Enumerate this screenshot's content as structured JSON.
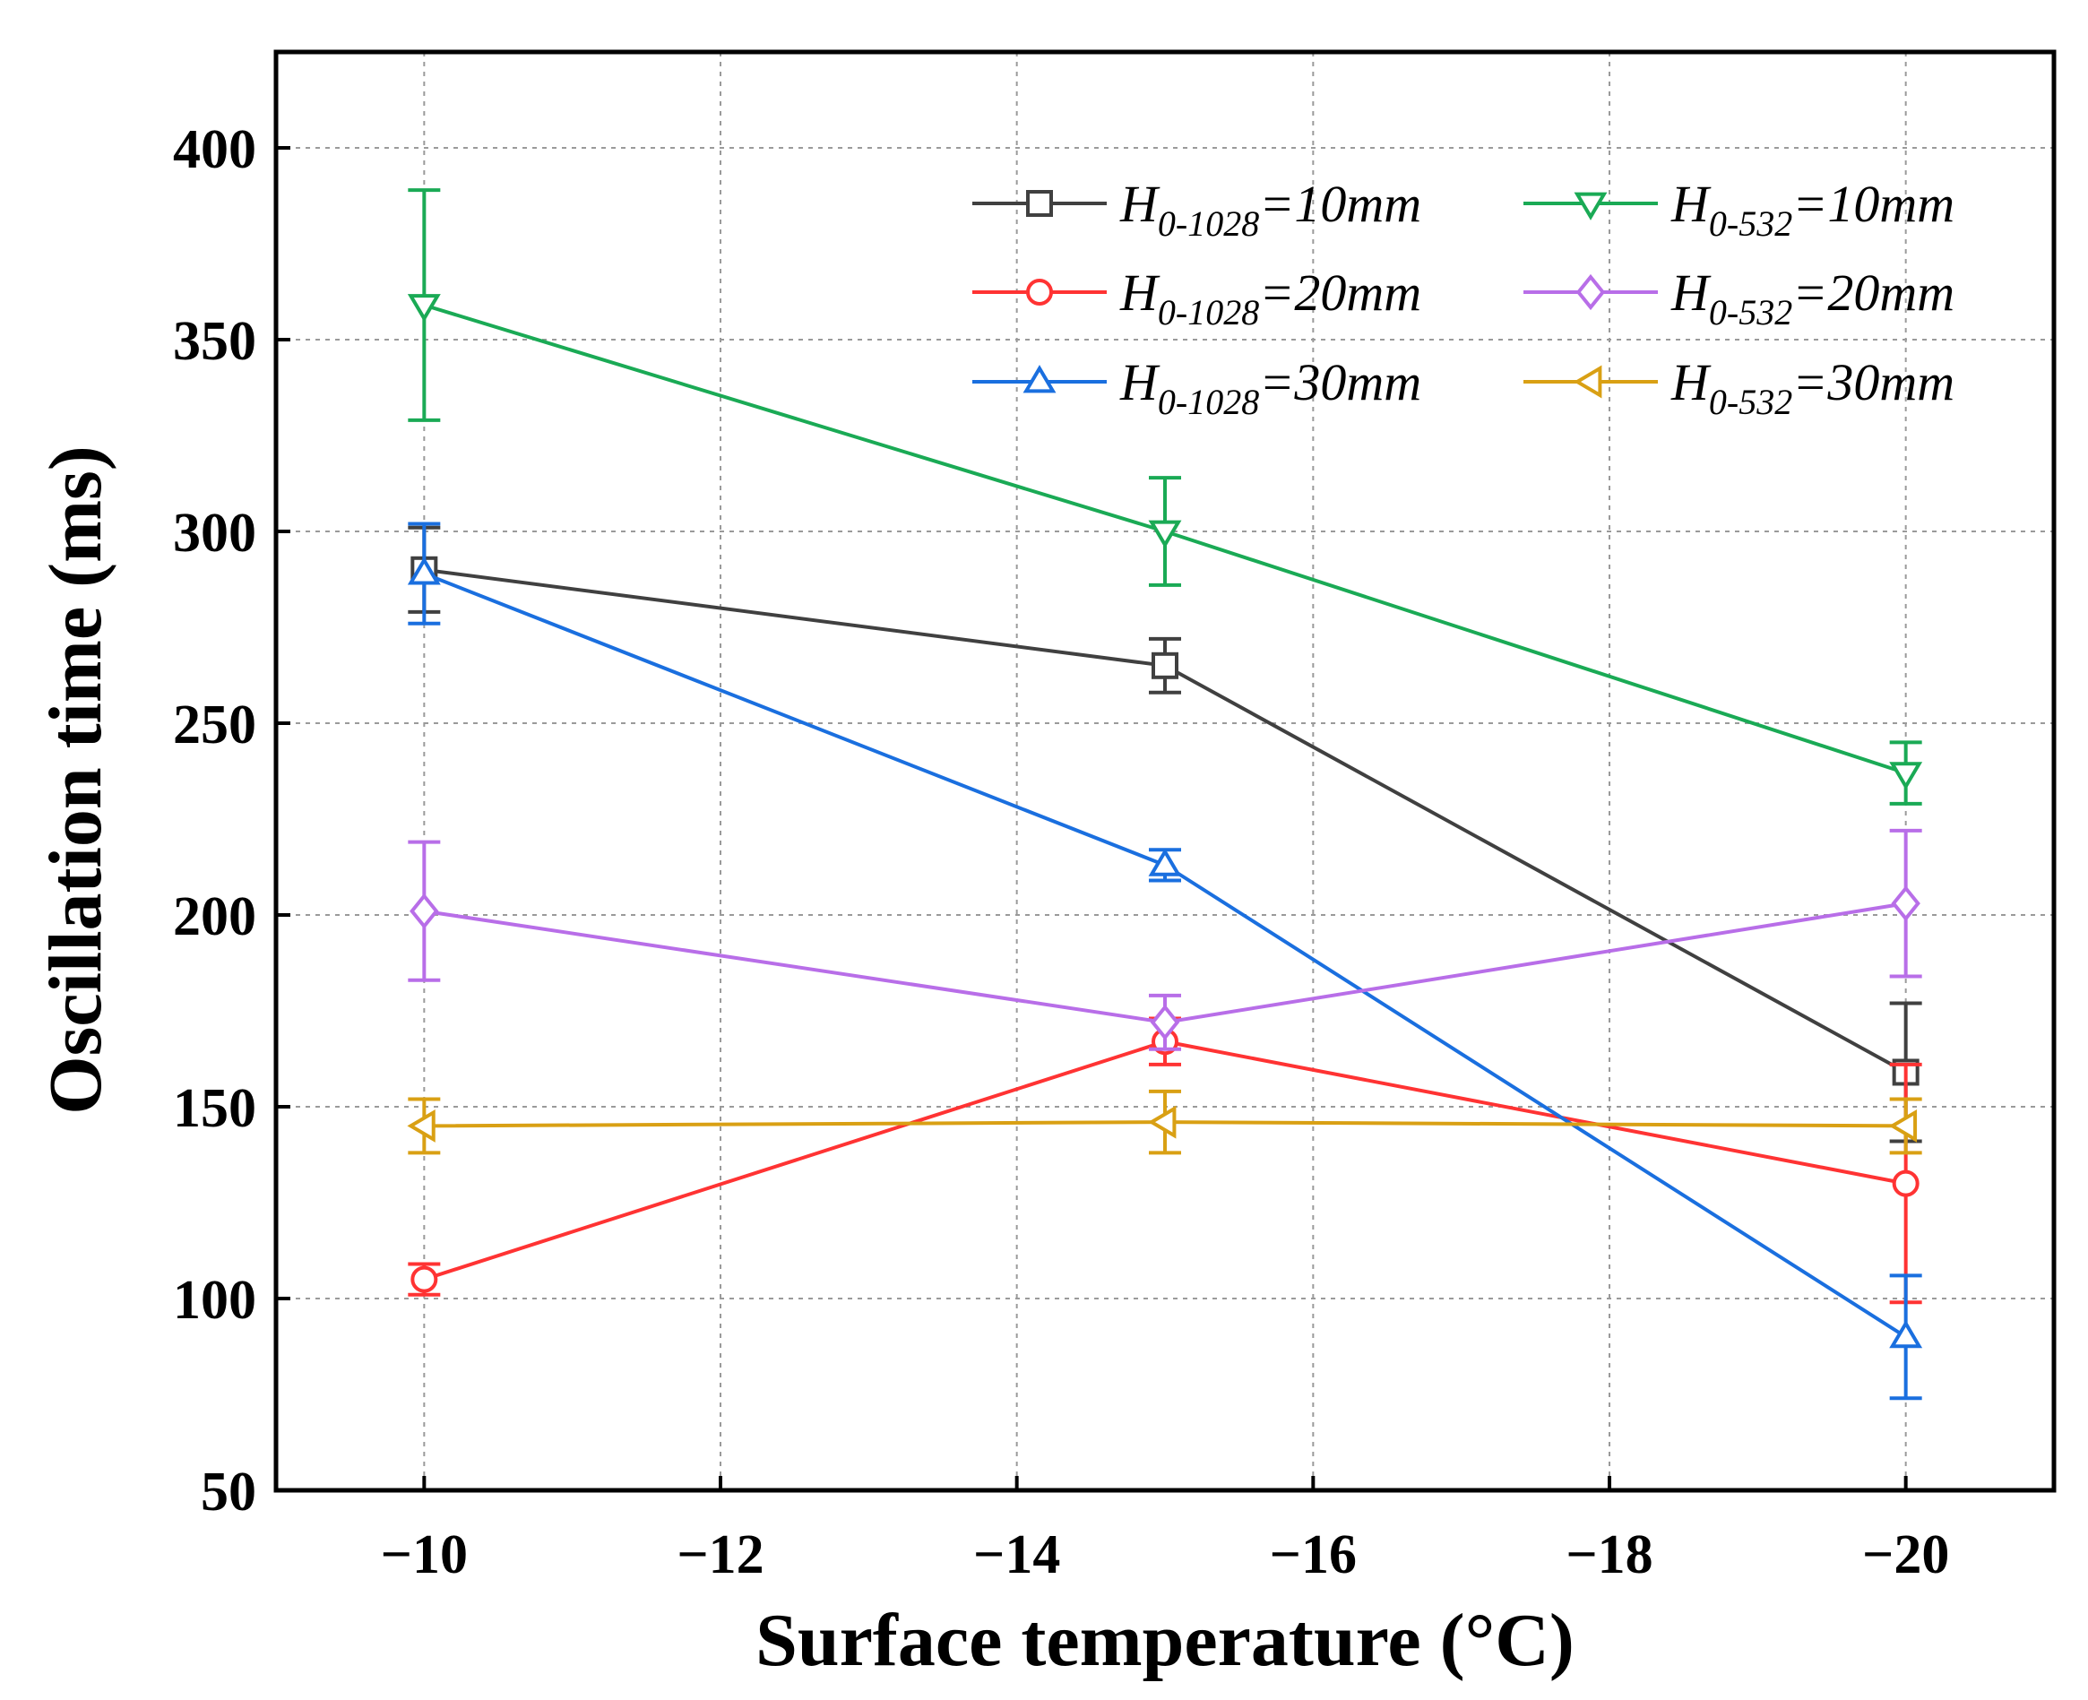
{
  "chart_data": {
    "type": "line",
    "title": "",
    "xlabel": "Surface temperature (°C)",
    "ylabel": "Oscillation time (ms)",
    "x": [
      -10,
      -15,
      -20
    ],
    "x_ticks": [
      -10,
      -12,
      -14,
      -16,
      -18,
      -20
    ],
    "x_tick_labels": [
      "−10",
      "−12",
      "−14",
      "−16",
      "−18",
      "−20"
    ],
    "xlim": [
      -9,
      -21
    ],
    "y_ticks": [
      50,
      100,
      150,
      200,
      250,
      300,
      350,
      400
    ],
    "y_tick_labels": [
      "50",
      "100",
      "150",
      "200",
      "250",
      "300",
      "350",
      "400"
    ],
    "ylim": [
      50,
      425
    ],
    "grid": true,
    "legend_position": "top-right",
    "series": [
      {
        "name": "H0-1028=10mm",
        "base": "H",
        "sub": "0-1028",
        "rest": "=10mm",
        "color": "#404040",
        "marker": "square",
        "values": [
          290,
          265,
          159
        ],
        "errors": [
          11,
          7,
          18
        ]
      },
      {
        "name": "H0-1028=20mm",
        "base": "H",
        "sub": "0-1028",
        "rest": "=20mm",
        "color": "#ff3333",
        "marker": "circle",
        "values": [
          105,
          167,
          130
        ],
        "errors": [
          4,
          6,
          31
        ]
      },
      {
        "name": "H0-1028=30mm",
        "base": "H",
        "sub": "0-1028",
        "rest": "=30mm",
        "color": "#1a6fdf",
        "marker": "triangle-up",
        "values": [
          289,
          213,
          90
        ],
        "errors": [
          13,
          4,
          16
        ]
      },
      {
        "name": "H0-532=10mm",
        "base": "H",
        "sub": "0-532",
        "rest": "=10mm",
        "color": "#1aaa55",
        "marker": "triangle-down",
        "values": [
          359,
          300,
          237
        ],
        "errors": [
          30,
          14,
          8
        ]
      },
      {
        "name": "H0-532=20mm",
        "base": "H",
        "sub": "0-532",
        "rest": "=20mm",
        "color": "#b86ee8",
        "marker": "diamond",
        "values": [
          201,
          172,
          203
        ],
        "errors": [
          18,
          7,
          19
        ]
      },
      {
        "name": "H0-532=30mm",
        "base": "H",
        "sub": "0-532",
        "rest": "=30mm",
        "color": "#d9a014",
        "marker": "triangle-left",
        "values": [
          145,
          146,
          145
        ],
        "errors": [
          7,
          8,
          7
        ]
      }
    ]
  }
}
